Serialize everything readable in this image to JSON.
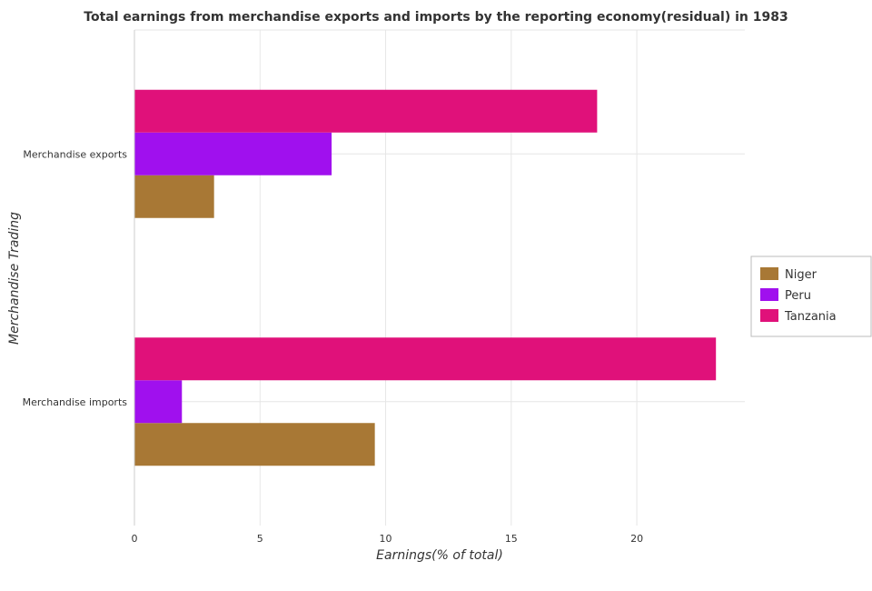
{
  "chart_data": {
    "type": "bar",
    "orientation": "horizontal",
    "title": "Total earnings from merchandise exports and imports by the reporting economy(residual) in 1983",
    "xlabel": "Earnings(% of total)",
    "ylabel": "Merchandise Trading",
    "categories": [
      "Merchandise exports",
      "Merchandise imports"
    ],
    "series": [
      {
        "name": "Niger",
        "color": "#a87835",
        "values": [
          3.17,
          9.57
        ]
      },
      {
        "name": "Peru",
        "color": "#a010ee",
        "values": [
          7.85,
          1.89
        ]
      },
      {
        "name": "Tanzania",
        "color": "#e0117a",
        "values": [
          18.42,
          23.15
        ]
      }
    ],
    "xlim": [
      0,
      24.3
    ],
    "xticks": [
      0,
      5,
      10,
      15,
      20
    ],
    "xtick_labels": [
      "0",
      "5",
      "10",
      "15",
      "20"
    ],
    "grid": true,
    "legend_position": "right"
  }
}
